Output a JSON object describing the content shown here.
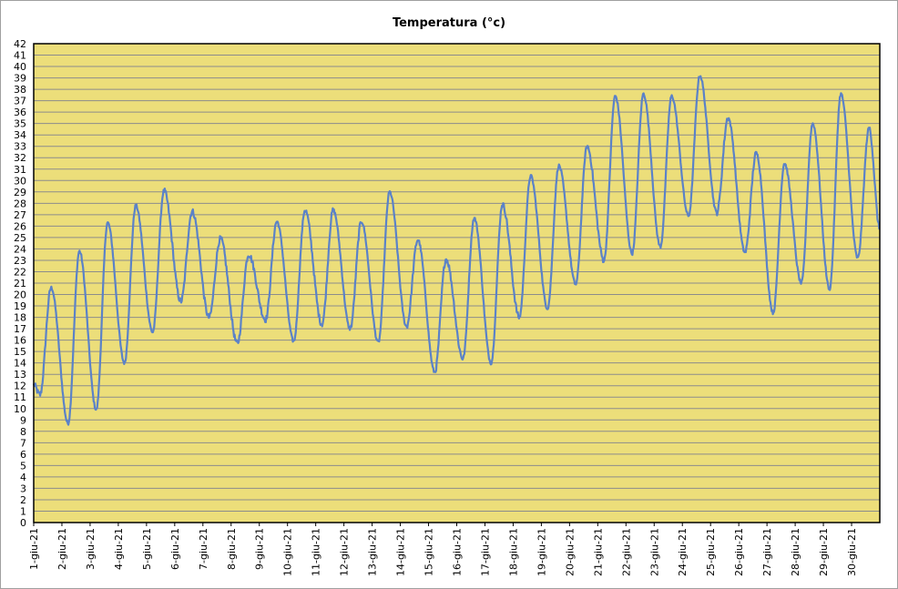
{
  "chart_data": {
    "type": "line",
    "title": "Temperatura (°c)",
    "xlabel": "",
    "ylabel": "",
    "ylim": [
      0,
      42
    ],
    "yticks": [
      0,
      1,
      2,
      3,
      4,
      5,
      6,
      7,
      8,
      9,
      10,
      11,
      12,
      13,
      14,
      15,
      16,
      17,
      18,
      19,
      20,
      21,
      22,
      23,
      24,
      25,
      26,
      27,
      28,
      29,
      30,
      31,
      32,
      33,
      34,
      35,
      36,
      37,
      38,
      39,
      40,
      41,
      42
    ],
    "categories": [
      "1-giu-21",
      "2-giu-21",
      "3-giu-21",
      "4-giu-21",
      "5-giu-21",
      "6-giu-21",
      "7-giu-21",
      "8-giu-21",
      "9-giu-21",
      "10-giu-21",
      "11-giu-21",
      "12-giu-21",
      "13-giu-21",
      "14-giu-21",
      "15-giu-21",
      "16-giu-21",
      "17-giu-21",
      "18-giu-21",
      "19-giu-21",
      "20-giu-21",
      "21-giu-21",
      "22-giu-21",
      "23-giu-21",
      "24-giu-21",
      "25-giu-21",
      "26-giu-21",
      "27-giu-21",
      "28-giu-21",
      "29-giu-21",
      "30-giu-21"
    ],
    "grid": true,
    "colors": {
      "plot_bg": "#ecde7a",
      "grid": "#8c8c8c",
      "line": "#5b82c8"
    },
    "daily": [
      {
        "date": "1-giu-21",
        "min": 11.2,
        "max": 20.6
      },
      {
        "date": "2-giu-21",
        "min": 8.7,
        "max": 23.8
      },
      {
        "date": "3-giu-21",
        "min": 9.9,
        "max": 26.3
      },
      {
        "date": "4-giu-21",
        "min": 14.0,
        "max": 27.8
      },
      {
        "date": "5-giu-21",
        "min": 16.7,
        "max": 29.1
      },
      {
        "date": "6-giu-21",
        "min": 19.4,
        "max": 27.3
      },
      {
        "date": "7-giu-21",
        "min": 18.0,
        "max": 24.9
      },
      {
        "date": "8-giu-21",
        "min": 15.7,
        "max": 23.5
      },
      {
        "date": "9-giu-21",
        "min": 17.8,
        "max": 26.4
      },
      {
        "date": "10-giu-21",
        "min": 15.9,
        "max": 27.4
      },
      {
        "date": "11-giu-21",
        "min": 17.4,
        "max": 27.4
      },
      {
        "date": "12-giu-21",
        "min": 17.0,
        "max": 26.4
      },
      {
        "date": "13-giu-21",
        "min": 15.8,
        "max": 29.0
      },
      {
        "date": "14-giu-21",
        "min": 17.2,
        "max": 24.8
      },
      {
        "date": "15-giu-21",
        "min": 13.2,
        "max": 23.1
      },
      {
        "date": "16-giu-21",
        "min": 14.4,
        "max": 26.7
      },
      {
        "date": "17-giu-21",
        "min": 14.0,
        "max": 27.9
      },
      {
        "date": "18-giu-21",
        "min": 18.0,
        "max": 30.4
      },
      {
        "date": "19-giu-21",
        "min": 18.8,
        "max": 31.3
      },
      {
        "date": "20-giu-21",
        "min": 20.9,
        "max": 33.0
      },
      {
        "date": "21-giu-21",
        "min": 23.0,
        "max": 37.4
      },
      {
        "date": "22-giu-21",
        "min": 23.6,
        "max": 37.6
      },
      {
        "date": "23-giu-21",
        "min": 24.2,
        "max": 37.4
      },
      {
        "date": "24-giu-21",
        "min": 26.9,
        "max": 39.2
      },
      {
        "date": "25-giu-21",
        "min": 27.2,
        "max": 35.5
      },
      {
        "date": "26-giu-21",
        "min": 23.7,
        "max": 32.4
      },
      {
        "date": "27-giu-21",
        "min": 18.4,
        "max": 31.5
      },
      {
        "date": "28-giu-21",
        "min": 21.0,
        "max": 35.0
      },
      {
        "date": "29-giu-21",
        "min": 20.5,
        "max": 37.6
      },
      {
        "date": "30-giu-21",
        "min": 23.2,
        "max": 34.6
      }
    ],
    "end_value": 25.8
  }
}
